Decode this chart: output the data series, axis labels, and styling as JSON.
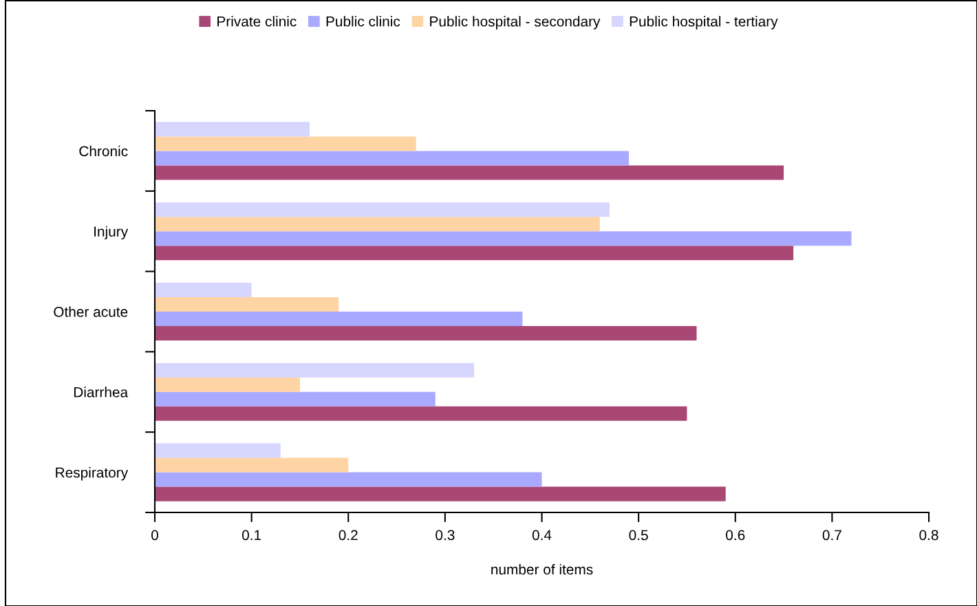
{
  "chart_data": {
    "type": "bar",
    "orientation": "horizontal",
    "xlabel": "number of items",
    "categories": [
      "Chronic",
      "Injury",
      "Other acute",
      "Diarrhea",
      "Respiratory"
    ],
    "series": [
      {
        "name": "Private clinic",
        "color": "#aa4875",
        "values": [
          0.65,
          0.66,
          0.56,
          0.55,
          0.59
        ]
      },
      {
        "name": "Public clinic",
        "color": "#a9a9ff",
        "values": [
          0.49,
          0.72,
          0.38,
          0.29,
          0.4
        ]
      },
      {
        "name": "Public hospital - secondary",
        "color": "#ffd4a5",
        "values": [
          0.27,
          0.46,
          0.19,
          0.15,
          0.2
        ]
      },
      {
        "name": "Public hospital - tertiary",
        "color": "#d6d6ff",
        "values": [
          0.16,
          0.47,
          0.1,
          0.33,
          0.13
        ]
      }
    ],
    "xlim": [
      0,
      0.8
    ],
    "xticks": [
      0,
      0.1,
      0.2,
      0.3,
      0.4,
      0.5,
      0.6,
      0.7,
      0.8
    ],
    "grid": false,
    "legend": "top"
  }
}
